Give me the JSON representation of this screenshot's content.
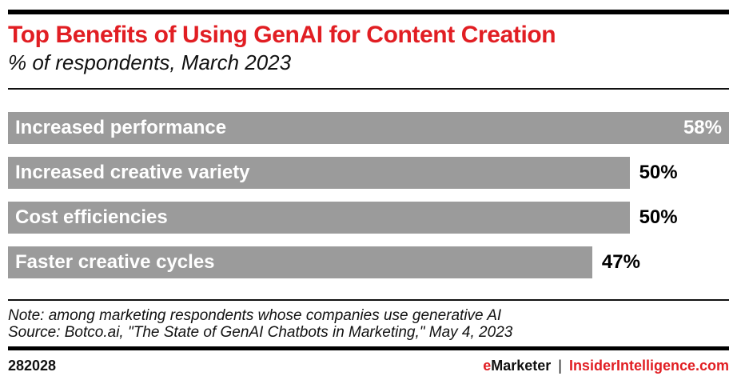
{
  "header": {
    "title": "Top Benefits of Using GenAI for Content Creation",
    "subtitle": "% of respondents, March 2023"
  },
  "chart_data": {
    "type": "bar",
    "orientation": "horizontal",
    "title": "Top Benefits of Using GenAI for Content Creation",
    "subtitle": "% of respondents, March 2023",
    "unit": "%",
    "categories": [
      "Increased performance",
      "Increased creative variety",
      "Cost efficiencies",
      "Faster creative cycles"
    ],
    "values": [
      58,
      50,
      50,
      47
    ],
    "value_labels": [
      "58%",
      "50%",
      "50%",
      "47%"
    ],
    "scale_max": 58,
    "bar_color": "#9b9b9b",
    "grid": false,
    "legend": false,
    "value_label_position_rule": "inside bar when bar is full width, otherwise right of bar"
  },
  "footnotes": {
    "note": "Note: among marketing respondents whose companies use generative AI",
    "source": "Source: Botco.ai, \"The State of GenAI Chatbots in Marketing,\" May 4, 2023"
  },
  "footer": {
    "chart_id": "282028",
    "brand_e": "e",
    "brand_rest": "Marketer",
    "separator": "|",
    "site": "InsiderIntelligence.com"
  },
  "colors": {
    "accent_red": "#e11e23",
    "bar_gray": "#9b9b9b",
    "rule_black": "#000000",
    "text_black": "#111111",
    "bar_label_white": "#ffffff"
  }
}
